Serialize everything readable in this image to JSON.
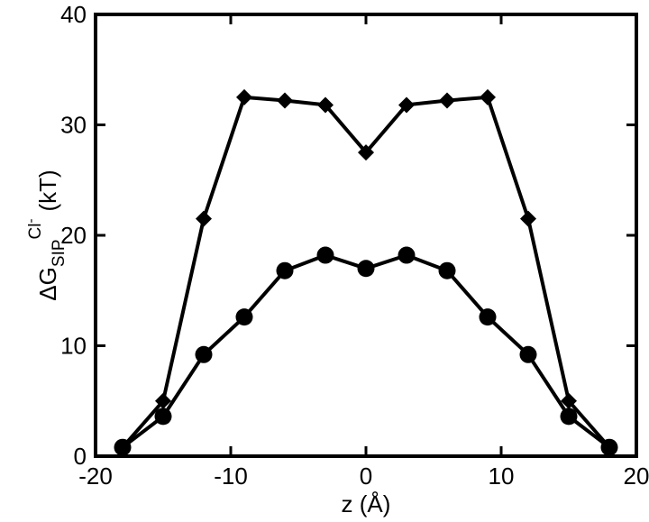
{
  "chart_data": {
    "type": "line",
    "xlabel": "z (Å)",
    "ylabel": {
      "main": "ΔG",
      "subscript": "SIP",
      "superscript": "Cl",
      "superscript_sign": "-",
      "unit": "(kT)"
    },
    "xlim": [
      -20,
      20
    ],
    "ylim": [
      0,
      40
    ],
    "x_ticks": [
      -20,
      -10,
      0,
      10,
      20
    ],
    "y_ticks": [
      0,
      10,
      20,
      30,
      40
    ],
    "grid": false,
    "series": [
      {
        "marker": "diamond",
        "x": [
          -18,
          -15,
          -12,
          -9,
          -6,
          -3,
          0,
          3,
          6,
          9,
          12,
          15,
          18
        ],
        "y": [
          0.8,
          5.0,
          21.5,
          32.5,
          32.2,
          31.8,
          27.5,
          31.8,
          32.2,
          32.5,
          21.5,
          5.0,
          0.8
        ]
      },
      {
        "marker": "circle",
        "x": [
          -18,
          -15,
          -12,
          -9,
          -6,
          -3,
          0,
          3,
          6,
          9,
          12,
          15,
          18
        ],
        "y": [
          0.8,
          3.6,
          9.2,
          12.6,
          16.8,
          18.2,
          17.0,
          18.2,
          16.8,
          12.6,
          9.2,
          3.6,
          0.8
        ]
      }
    ],
    "colors": {
      "line": "#000000",
      "marker": "#000000",
      "frame": "#000000"
    }
  }
}
